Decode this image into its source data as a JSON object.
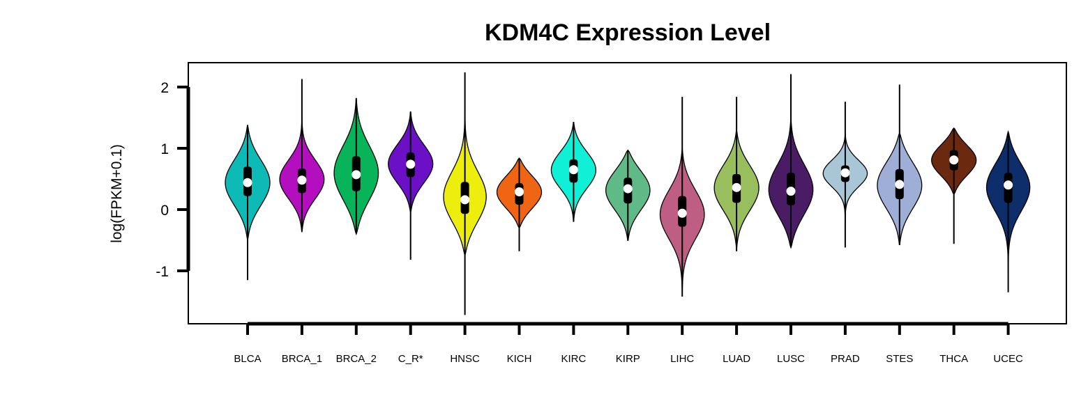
{
  "chart_data": {
    "type": "violin",
    "title": "KDM4C Expression Level",
    "xlabel": "",
    "ylabel": "log(FPKM+0.1)",
    "ylim": [
      -1.9,
      2.4
    ],
    "yticks": [
      -1,
      0,
      1,
      2
    ],
    "ytick_labels": [
      "-1",
      "0",
      "1",
      "2"
    ],
    "grid": false,
    "legend": "none",
    "categories": [
      "BLCA",
      "BRCA_1",
      "BRCA_2",
      "C_R*",
      "HNSC",
      "KICH",
      "KIRC",
      "KIRP",
      "LIHC",
      "LUAD",
      "LUSC",
      "PRAD",
      "STES",
      "THCA",
      "UCEC"
    ],
    "colors": [
      "#0DBAB5",
      "#B40FBE",
      "#08B35A",
      "#6B10C6",
      "#EEEE0E",
      "#F06514",
      "#0FF0D6",
      "#5FBA87",
      "#BE5E82",
      "#98BE5E",
      "#4A1C66",
      "#A8C6D6",
      "#9EAED6",
      "#6B2A10",
      "#0E2D6B"
    ],
    "series": [
      {
        "category": "BLCA",
        "min": -1.15,
        "max": 1.38,
        "q1": 0.22,
        "median": 0.44,
        "q3": 0.7,
        "vmin": -0.5,
        "vmax": 1.38
      },
      {
        "category": "BRCA_1",
        "min": -0.35,
        "max": 2.13,
        "q1": 0.27,
        "median": 0.48,
        "q3": 0.67,
        "vmin": -0.37,
        "vmax": 1.5
      },
      {
        "category": "BRCA_2",
        "min": -0.38,
        "max": 1.82,
        "q1": 0.3,
        "median": 0.57,
        "q3": 0.87,
        "vmin": -0.4,
        "vmax": 1.82
      },
      {
        "category": "C_R*",
        "min": -0.82,
        "max": 1.6,
        "q1": 0.53,
        "median": 0.74,
        "q3": 0.93,
        "vmin": -0.05,
        "vmax": 1.6
      },
      {
        "category": "HNSC",
        "min": -1.72,
        "max": 2.24,
        "q1": -0.07,
        "median": 0.16,
        "q3": 0.45,
        "vmin": -0.75,
        "vmax": 1.8
      },
      {
        "category": "KICH",
        "min": -0.68,
        "max": 0.84,
        "q1": 0.08,
        "median": 0.29,
        "q3": 0.43,
        "vmin": -0.3,
        "vmax": 0.84
      },
      {
        "category": "KIRC",
        "min": -0.2,
        "max": 1.43,
        "q1": 0.44,
        "median": 0.65,
        "q3": 0.82,
        "vmin": -0.2,
        "vmax": 1.43
      },
      {
        "category": "KIRP",
        "min": -0.51,
        "max": 0.97,
        "q1": 0.1,
        "median": 0.34,
        "q3": 0.52,
        "vmin": -0.51,
        "vmax": 0.97
      },
      {
        "category": "LIHC",
        "min": -1.42,
        "max": 1.84,
        "q1": -0.28,
        "median": -0.06,
        "q3": 0.22,
        "vmin": -1.42,
        "vmax": 1.0
      },
      {
        "category": "LUAD",
        "min": -0.68,
        "max": 1.84,
        "q1": 0.11,
        "median": 0.36,
        "q3": 0.58,
        "vmin": -0.65,
        "vmax": 1.3
      },
      {
        "category": "LUSC",
        "min": -0.62,
        "max": 2.21,
        "q1": 0.07,
        "median": 0.3,
        "q3": 0.6,
        "vmin": -0.62,
        "vmax": 1.5
      },
      {
        "category": "PRAD",
        "min": -0.62,
        "max": 1.76,
        "q1": 0.45,
        "median": 0.6,
        "q3": 0.72,
        "vmin": -0.25,
        "vmax": 1.25
      },
      {
        "category": "STES",
        "min": -0.58,
        "max": 2.04,
        "q1": 0.17,
        "median": 0.41,
        "q3": 0.66,
        "vmin": -0.58,
        "vmax": 1.25
      },
      {
        "category": "THCA",
        "min": -0.56,
        "max": 1.33,
        "q1": 0.64,
        "median": 0.81,
        "q3": 0.97,
        "vmin": 0.25,
        "vmax": 1.33
      },
      {
        "category": "UCEC",
        "min": -1.35,
        "max": 1.27,
        "q1": 0.11,
        "median": 0.4,
        "q3": 0.6,
        "vmin": -1.0,
        "vmax": 1.27
      }
    ]
  }
}
